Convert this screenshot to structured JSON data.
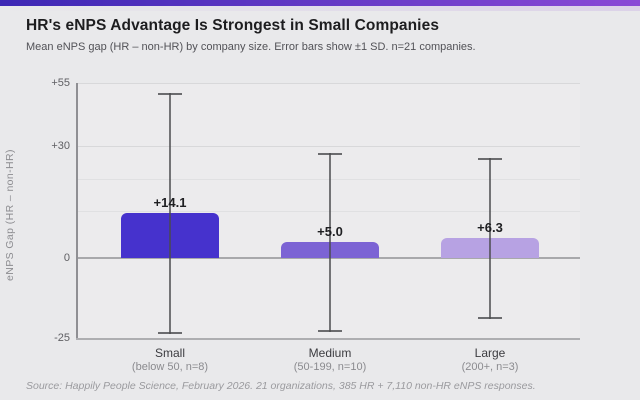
{
  "page": {
    "title": "HR's eNPS Advantage Is Strongest in Small Companies",
    "subtitle": "Mean eNPS gap (HR – non-HR) by company size. Error bars show ±1 SD. n=21 companies.",
    "source": "Source: Happily People Science, February 2026. 21 organizations, 385 HR + 7,110 non-HR eNPS responses."
  },
  "colors": {
    "accent_gradient_start": "#3d28b5",
    "accent_gradient_end": "#8a49d6",
    "background": "#e9e9eb",
    "error_bar": "#8a8a8a"
  },
  "chart_data": {
    "type": "bar",
    "title": "HR's eNPS Advantage Is Strongest in Small Companies",
    "subtitle": "Mean eNPS gap (HR – non-HR) by company size. Error bars show ±1 SD. n=21 companies.",
    "categories": [
      "Small",
      "Medium",
      "Large"
    ],
    "category_sublabels": [
      "(below 50, n=8)",
      "(50-199, n=10)",
      "(200+, n=3)"
    ],
    "values": [
      14.1,
      5.0,
      6.3
    ],
    "value_labels": [
      "+14.1",
      "+5.0",
      "+6.3"
    ],
    "sd": [
      37.9,
      28.1,
      25.3
    ],
    "error_note": "±1 SD",
    "bar_colors": [
      "#4632cd",
      "#7c63d4",
      "#b7a2e3"
    ],
    "ylabel": "eNPS Gap (HR – non-HR)",
    "xlabel": "",
    "ylim": [
      -25,
      55
    ],
    "yticks": [
      {
        "value": 55,
        "label": "+55"
      },
      {
        "value": 30,
        "label": "+30"
      },
      {
        "value": 0,
        "label": "0"
      },
      {
        "value": -25,
        "label": "-25"
      }
    ],
    "grid": true,
    "legend": false
  }
}
